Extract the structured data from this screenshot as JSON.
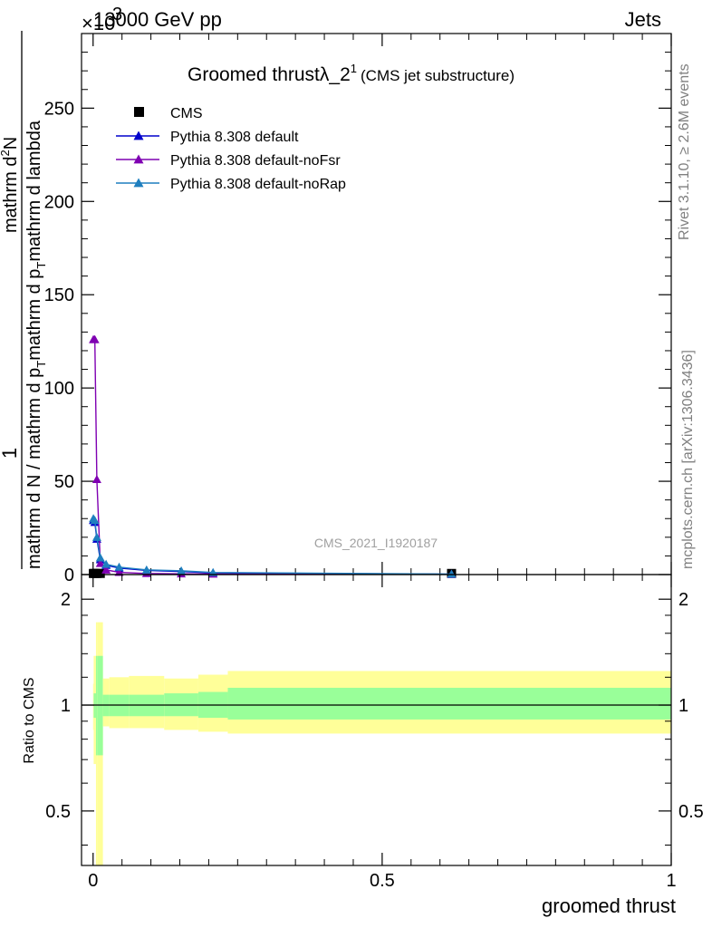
{
  "header": {
    "left": "13000 GeV pp",
    "right": "Jets",
    "exponent_base": "×10",
    "exponent": "3"
  },
  "side_text": {
    "rivet": "Rivet 3.1.10, ≥ 2.6M events",
    "mcplots": "mcplots.cern.ch [arXiv:1306.3436]"
  },
  "watermark": "CMS_2021_I1920187",
  "chart_data": [
    {
      "type": "line",
      "title": "Groomed thrustλ_2",
      "title_sup": "1",
      "subtitle": "(CMS jet substructure)",
      "ylabel_parts": [
        "1",
        "mathrm d N / mathrm d p",
        "T",
        "mathrm d p",
        "T",
        "mathrm d lambda",
        "mathrm d",
        "2",
        "N"
      ],
      "xlim": [
        -0.02,
        1.0
      ],
      "ylim": [
        0,
        290
      ],
      "yticks": [
        0,
        50,
        100,
        150,
        200,
        250
      ],
      "colors": {
        "CMS": "#000000",
        "Pythia 8.308 default": "#0000cc",
        "Pythia 8.308 default-noFsr": "#7f00b2",
        "Pythia 8.308 default-noRap": "#1f7fbf"
      },
      "series": [
        {
          "name": "CMS",
          "marker": "square",
          "x": [
            0.0005,
            0.003,
            0.0065,
            0.0125,
            0.62
          ],
          "y": [
            0.6,
            0.6,
            0.6,
            0.6,
            0.6
          ]
        },
        {
          "name": "Pythia 8.308 default",
          "marker": "triangle",
          "x": [
            0.0005,
            0.003,
            0.0065,
            0.0125,
            0.0225,
            0.045,
            0.0925,
            0.1525,
            0.2075,
            0.62
          ],
          "y": [
            29,
            28,
            19,
            8,
            5,
            3.5,
            2.2,
            1.6,
            0.9,
            0.2
          ]
        },
        {
          "name": "Pythia 8.308 default-noFsr",
          "marker": "triangle",
          "x": [
            0.0005,
            0.003,
            0.0065,
            0.0125,
            0.0225,
            0.045,
            0.0925,
            0.1525,
            0.2075,
            0.62
          ],
          "y": [
            126,
            126,
            51,
            6,
            2.5,
            1.2,
            0.6,
            0.4,
            0.3,
            0.1
          ]
        },
        {
          "name": "Pythia 8.308 default-noRap",
          "marker": "triangle",
          "x": [
            0.0005,
            0.003,
            0.0065,
            0.0125,
            0.0225,
            0.045,
            0.0925,
            0.1525,
            0.2075,
            0.62
          ],
          "y": [
            30,
            29,
            20,
            9,
            5.5,
            4,
            2.5,
            2,
            1.1,
            0.25
          ]
        }
      ]
    },
    {
      "type": "area",
      "ylabel": "Ratio to CMS",
      "xlabel": "groomed thrust",
      "xlim": [
        -0.02,
        1.0
      ],
      "ylim": [
        0.35,
        2.35
      ],
      "yscale": "log",
      "yticks": [
        "0.5",
        "1",
        "2"
      ],
      "xticks": [
        "0",
        "0.5",
        "1"
      ],
      "reference": 1,
      "colors": {
        "inner": "#99ff99",
        "outer": "#ffff99",
        "reference": "#000000"
      },
      "bins": {
        "edges": [
          0.0,
          0.001,
          0.005,
          0.008,
          0.017,
          0.028,
          0.062,
          0.123,
          0.182,
          0.233,
          1.0
        ],
        "inner_low": [
          1.0,
          0.92,
          0.72,
          0.72,
          0.93,
          0.93,
          0.93,
          0.93,
          0.92,
          0.91
        ],
        "inner_high": [
          1.0,
          1.08,
          1.38,
          1.38,
          1.07,
          1.07,
          1.07,
          1.08,
          1.09,
          1.12
        ],
        "outer_low": [
          0.85,
          0.68,
          0.32,
          0.32,
          0.87,
          0.86,
          0.86,
          0.85,
          0.84,
          0.83
        ],
        "outer_high": [
          1.15,
          1.38,
          1.72,
          1.72,
          1.19,
          1.2,
          1.21,
          1.19,
          1.22,
          1.25
        ]
      }
    }
  ]
}
